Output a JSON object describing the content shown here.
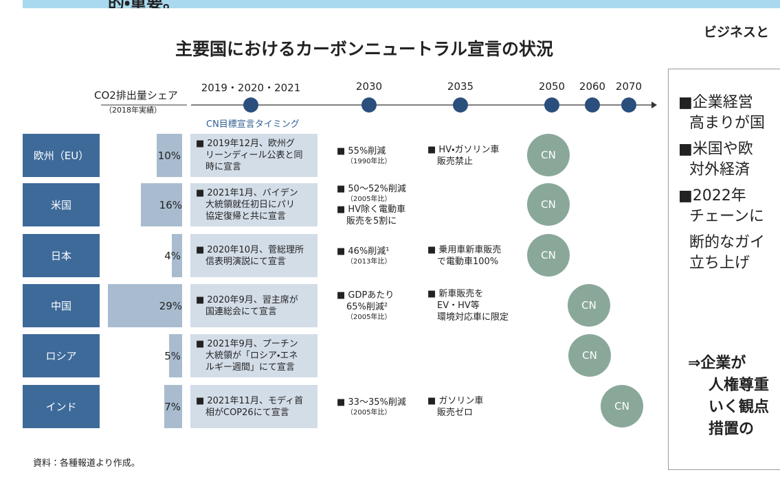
{
  "header": {
    "cut_text": "的・重要。"
  },
  "title": "主要国におけるカーボンニュートラル宣言の状況",
  "share_heading": "CO2排出量シェア",
  "share_subheading": "（2018年実績）",
  "timing_label": "CN目標宣言タイミング",
  "timeline": [
    "2019・2020・2021",
    "2030",
    "2035",
    "2050",
    "2060",
    "2070"
  ],
  "rows": [
    {
      "country": "欧州（EU）",
      "share": 10,
      "share_label": "10%",
      "declaration": [
        "■ 2019年12月、欧州グ",
        "リーンディール公表と同",
        "時に宣言"
      ],
      "target_2030": [
        "■ 55%削減",
        "（1990年比）"
      ],
      "target_2035": [
        "■ HV・ガソリン車",
        "販売禁止"
      ],
      "cn": "CN"
    },
    {
      "country": "米国",
      "share": 16,
      "share_label": "16%",
      "declaration": [
        "■ 2021年1月、バイデン",
        "大統領就任初日にパリ",
        "協定復帰と共に宣言"
      ],
      "target_2030": [
        "■ 50〜52%削減",
        "（2005年比）",
        "■ HV除く電動車",
        "販売を5割に"
      ],
      "target_2035": [],
      "cn": "CN"
    },
    {
      "country": "日本",
      "share": 4,
      "share_label": "4%",
      "declaration": [
        "■ 2020年10月、菅総理所",
        "信表明演説にて宣言"
      ],
      "target_2030": [
        "■ 46%削減¹",
        "（2013年比）"
      ],
      "target_2035": [
        "■ 乗用車新車販売",
        "で電動車100%"
      ],
      "cn": "CN"
    },
    {
      "country": "中国",
      "share": 29,
      "share_label": "29%",
      "declaration": [
        "■ 2020年9月、習主席が",
        "国連総会にて宣言"
      ],
      "target_2030": [
        "■ GDPあたり",
        "65%削減²",
        "（2005年比）"
      ],
      "target_2035": [
        "■ 新車販売を",
        "EV・HV等",
        "環境対応車に限定"
      ],
      "cn": "CN"
    },
    {
      "country": "ロシア",
      "share": 5,
      "share_label": "5%",
      "declaration": [
        "■ 2021年9月、プーチン",
        "大統領が「ロシア・エネ",
        "ルギー週間」にて宣言"
      ],
      "target_2030": [],
      "target_2035": [],
      "cn": "CN"
    },
    {
      "country": "インド",
      "share": 7,
      "share_label": "7%",
      "declaration": [
        "■ 2021年11月、モディ首",
        "相がCOP26にて宣言"
      ],
      "target_2030": [
        "■ 33〜35%削減",
        "（2005年比）"
      ],
      "target_2035": [
        "■ ガソリン車",
        "販売ゼロ"
      ],
      "cn": "CN"
    }
  ],
  "source": "資料：各種報道より作成。",
  "side_title": "ビジネスと",
  "side_lines": [
    "■企業経営",
    "高まりが国",
    "■米国や欧",
    "対外経済",
    "■2022年",
    "チェーンに",
    "断的なガイ",
    "立ち上げ"
  ],
  "side_conclusion": [
    "⇒企業が",
    "人権尊重",
    "いく観点",
    "措置の"
  ]
}
